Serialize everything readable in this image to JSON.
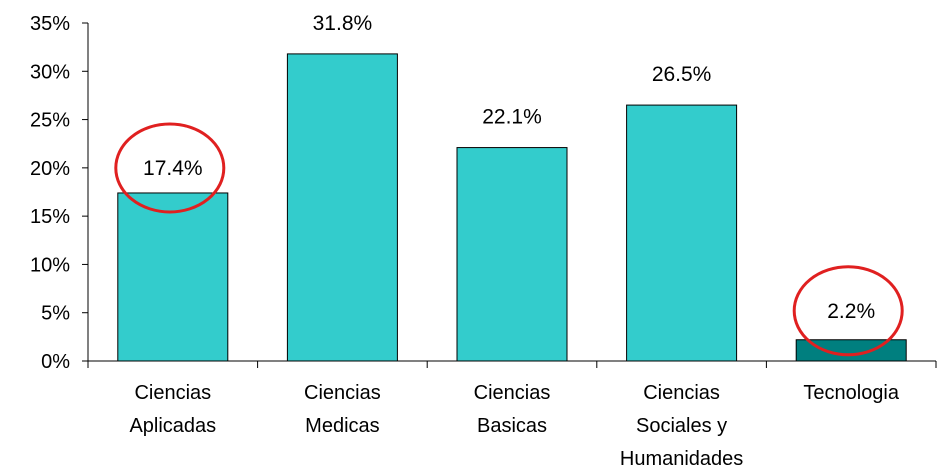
{
  "chart_data": {
    "type": "bar",
    "categories": [
      [
        "Ciencias",
        "Aplicadas"
      ],
      [
        "Ciencias",
        "Medicas"
      ],
      [
        "Ciencias",
        "Basicas"
      ],
      [
        "Ciencias",
        "Sociales y",
        "Humanidades"
      ],
      [
        "Tecnologia"
      ]
    ],
    "values": [
      17.4,
      31.8,
      22.1,
      26.5,
      2.2
    ],
    "data_labels": [
      "17.4%",
      "31.8%",
      "22.1%",
      "26.5%",
      "2.2%"
    ],
    "yticks": [
      "0%",
      "5%",
      "10%",
      "15%",
      "20%",
      "25%",
      "30%",
      "35%"
    ],
    "ylim": [
      0,
      35
    ],
    "grid": false,
    "highlighted": [
      "Ciencias Aplicadas",
      "Tecnologia"
    ],
    "colors": {
      "bar": "#33CCCC",
      "bar_highlight": "#007F7F",
      "bar_stroke": "#000000",
      "circle": "#E02020",
      "axis": "#000000"
    }
  }
}
